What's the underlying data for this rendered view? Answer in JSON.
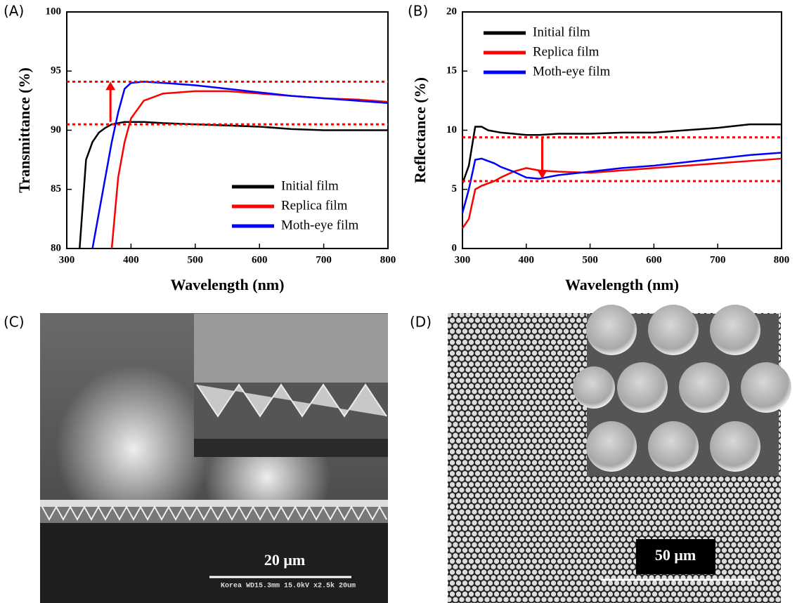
{
  "chart_data": [
    {
      "type": "line",
      "panel_label": "(A)",
      "xlabel": "Wavelength (nm)",
      "ylabel": "Transmittance (%)",
      "x": [
        320,
        330,
        340,
        350,
        360,
        370,
        380,
        390,
        400,
        420,
        450,
        500,
        550,
        600,
        650,
        700,
        750,
        800
      ],
      "series": [
        {
          "name": "Initial  film",
          "color": "#000000",
          "values": [
            80,
            87.5,
            89,
            89.8,
            90.2,
            90.5,
            90.6,
            90.7,
            90.7,
            90.7,
            90.6,
            90.5,
            90.4,
            90.3,
            90.1,
            90.0,
            90.0,
            90.0
          ]
        },
        {
          "name": "Replica film",
          "color": "#ff0000",
          "values": [
            null,
            null,
            null,
            null,
            null,
            80,
            86,
            89,
            91,
            92.5,
            93.1,
            93.3,
            93.3,
            93.1,
            92.9,
            92.7,
            92.6,
            92.4
          ]
        },
        {
          "name": "Moth-eye film",
          "color": "#0000ff",
          "values": [
            null,
            null,
            80,
            83,
            86,
            89,
            91.5,
            93.5,
            94,
            94.1,
            94,
            93.8,
            93.5,
            93.2,
            92.9,
            92.7,
            92.5,
            92.3
          ]
        }
      ],
      "xlim": [
        300,
        800
      ],
      "xticks": [
        300,
        400,
        500,
        600,
        700,
        800
      ],
      "ylim": [
        80,
        100
      ],
      "yticks": [
        80,
        85,
        90,
        95,
        100
      ],
      "reference_lines": [
        94.1,
        90.5
      ],
      "arrow": {
        "x": 368,
        "from": 90.7,
        "to": 94.1
      },
      "legend": "lower right"
    },
    {
      "type": "line",
      "panel_label": "(B)",
      "xlabel": "Wavelength (nm)",
      "ylabel": "Reflectance (%)",
      "x": [
        300,
        310,
        320,
        330,
        340,
        350,
        360,
        380,
        400,
        420,
        450,
        500,
        550,
        600,
        650,
        700,
        750,
        800
      ],
      "series": [
        {
          "name": "Initial film",
          "color": "#000000",
          "values": [
            5.5,
            7,
            10.3,
            10.3,
            10.0,
            9.9,
            9.8,
            9.7,
            9.6,
            9.6,
            9.7,
            9.7,
            9.8,
            9.8,
            10.0,
            10.2,
            10.5,
            10.5
          ]
        },
        {
          "name": "Replica film",
          "color": "#ff0000",
          "values": [
            1.7,
            2.5,
            5.0,
            5.3,
            5.5,
            5.7,
            6.0,
            6.5,
            6.8,
            6.6,
            6.5,
            6.4,
            6.6,
            6.8,
            7.0,
            7.2,
            7.4,
            7.6
          ]
        },
        {
          "name": "Moth-eye film",
          "color": "#0000ff",
          "values": [
            3.0,
            5.0,
            7.5,
            7.6,
            7.4,
            7.2,
            6.9,
            6.5,
            6.0,
            5.9,
            6.2,
            6.5,
            6.8,
            7.0,
            7.3,
            7.6,
            7.9,
            8.1
          ]
        }
      ],
      "xlim": [
        300,
        800
      ],
      "xticks": [
        300,
        400,
        500,
        600,
        700,
        800
      ],
      "ylim": [
        0,
        20
      ],
      "yticks": [
        0,
        5,
        10,
        15,
        20
      ],
      "reference_lines": [
        9.4,
        5.7
      ],
      "arrow": {
        "x": 425,
        "from": 9.4,
        "to": 5.9
      },
      "legend": "upper left"
    }
  ],
  "images": [
    {
      "label": "(C)",
      "scale_bar": "20 μm",
      "footer": "Korea  WD15.3mm 15.0kV x2.5k  20um"
    },
    {
      "label": "(D)",
      "scale_bar": "50 μm"
    }
  ]
}
